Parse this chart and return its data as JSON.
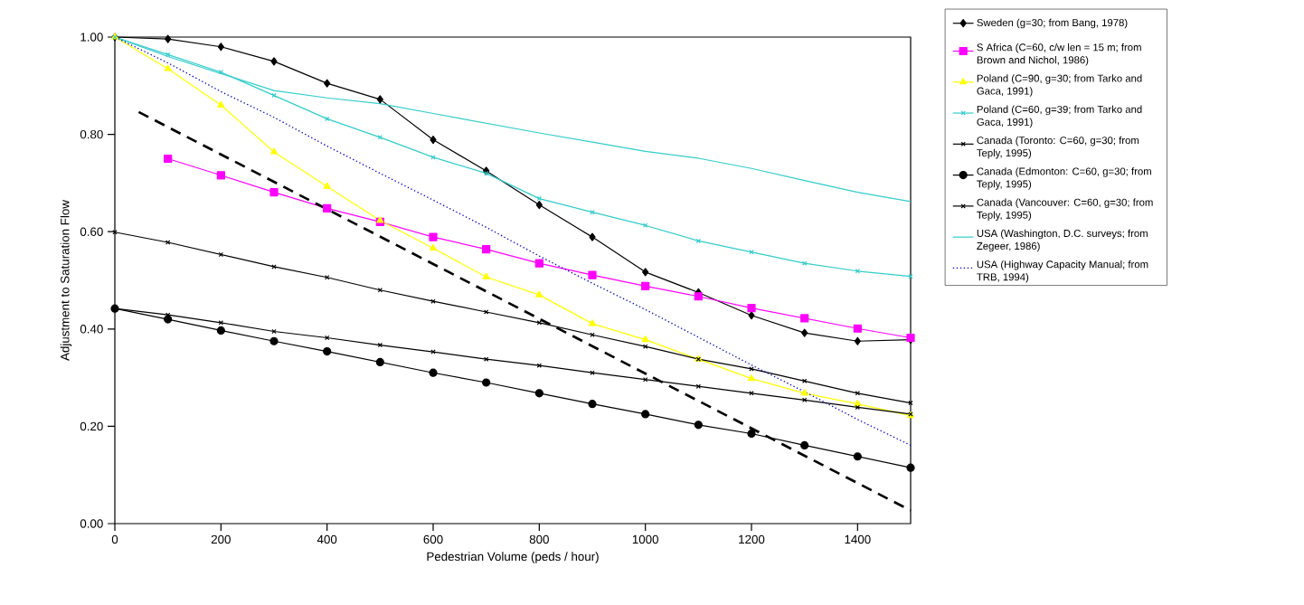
{
  "chart_data": {
    "type": "line",
    "xlabel": "Pedestrian Volume (peds / hour)",
    "ylabel": "Adjustment to Saturation Flow",
    "xlim": [
      0,
      1500
    ],
    "ylim": [
      0,
      1
    ],
    "xticks": [
      0,
      200,
      400,
      600,
      800,
      1000,
      1200,
      1400
    ],
    "yticks": [
      {
        "value": 0,
        "label": "0.00"
      },
      {
        "value": 0.2,
        "label": "0.20"
      },
      {
        "value": 0.4,
        "label": "0.40"
      },
      {
        "value": 0.6,
        "label": "0.60"
      },
      {
        "value": 0.8,
        "label": "0.80"
      },
      {
        "value": 1,
        "label": "1.00"
      }
    ],
    "x": [
      0,
      100,
      200,
      300,
      400,
      500,
      600,
      700,
      800,
      900,
      1000,
      1100,
      1200,
      1300,
      1400,
      1500
    ],
    "grid": false,
    "legend": "right",
    "series": [
      {
        "name": "Sweden (g=30; from Bang, 1978)",
        "color": "#000000",
        "marker": "diamond",
        "line_style": "solid",
        "values": [
          1.0,
          0.996,
          0.98,
          0.95,
          0.905,
          0.872,
          0.789,
          0.725,
          0.655,
          0.589,
          0.517,
          0.475,
          0.428,
          0.392,
          0.375,
          0.378
        ]
      },
      {
        "name": "S Africa (C=60, c/w len = 15 m; from Brown and Nichol, 1986)",
        "color": "#ff00ff",
        "marker": "square",
        "line_style": "solid",
        "values": [
          null,
          0.75,
          0.716,
          0.681,
          0.648,
          0.62,
          0.589,
          0.564,
          0.535,
          0.511,
          0.488,
          0.467,
          0.443,
          0.422,
          0.401,
          0.382
        ]
      },
      {
        "name": "Poland (C=90, g=30; from Tarko and Gaca, 1991)",
        "color": "#ffff00",
        "marker": "triangle",
        "line_style": "solid",
        "values": [
          1.0,
          0.935,
          0.86,
          0.764,
          0.693,
          0.623,
          0.566,
          0.507,
          0.47,
          0.411,
          0.378,
          0.338,
          0.298,
          0.268,
          0.246,
          0.222
        ]
      },
      {
        "name": "Poland (C=60, g=39; from Tarko and Gaca, 1991)",
        "color": "#33cccc",
        "marker": "cross",
        "line_style": "solid",
        "values": [
          1.0,
          0.964,
          0.928,
          0.88,
          0.832,
          0.794,
          0.753,
          0.72,
          0.668,
          0.64,
          0.613,
          0.581,
          0.558,
          0.535,
          0.519,
          0.508
        ]
      },
      {
        "name": "Canada (Toronto: C=60, g=30; from Teply, 1995)",
        "color": "#000000",
        "marker": "cross",
        "line_style": "solid",
        "values": [
          0.599,
          0.578,
          0.553,
          0.528,
          0.506,
          0.48,
          0.457,
          0.435,
          0.413,
          0.388,
          0.364,
          0.338,
          0.318,
          0.293,
          0.268,
          0.248
        ]
      },
      {
        "name": "Canada (Edmonton: C=60, g=30; from Teply, 1995)",
        "color": "#000000",
        "marker": "circle",
        "line_style": "solid",
        "values": [
          0.442,
          0.42,
          0.397,
          0.375,
          0.354,
          0.332,
          0.31,
          0.29,
          0.268,
          0.246,
          0.225,
          0.203,
          0.185,
          0.161,
          0.138,
          0.115
        ]
      },
      {
        "name": "Canada (Vancouver: C=60, g=30; from Teply, 1995)",
        "color": "#000000",
        "marker": "cross",
        "line_style": "solid",
        "values": [
          0.442,
          0.429,
          0.413,
          0.395,
          0.382,
          0.367,
          0.353,
          0.338,
          0.325,
          0.31,
          0.296,
          0.282,
          0.268,
          0.254,
          0.239,
          0.225
        ]
      },
      {
        "name": "USA (Washington, D.C. surveys; from Zegeer, 1986)",
        "color": "#33cccc",
        "marker": "none",
        "line_style": "solid",
        "values": [
          1.0,
          0.96,
          0.925,
          0.89,
          0.875,
          0.863,
          0.843,
          0.823,
          0.803,
          0.784,
          0.765,
          0.751,
          0.73,
          0.705,
          0.681,
          0.662
        ]
      },
      {
        "name": "USA (Highway Capacity Manual; from TRB, 1994)",
        "color": "#0000cc",
        "marker": "none",
        "line_style": "dotted",
        "values": [
          1.0,
          0.947,
          0.888,
          0.835,
          0.776,
          0.72,
          0.665,
          0.609,
          0.55,
          0.494,
          0.44,
          0.383,
          0.326,
          0.271,
          0.214,
          0.161
        ]
      },
      {
        "color": "#000000",
        "marker": "none",
        "line_style": "dashed",
        "x": [
          45,
          1500
        ],
        "values": [
          0.846,
          0.027
        ]
      }
    ]
  }
}
